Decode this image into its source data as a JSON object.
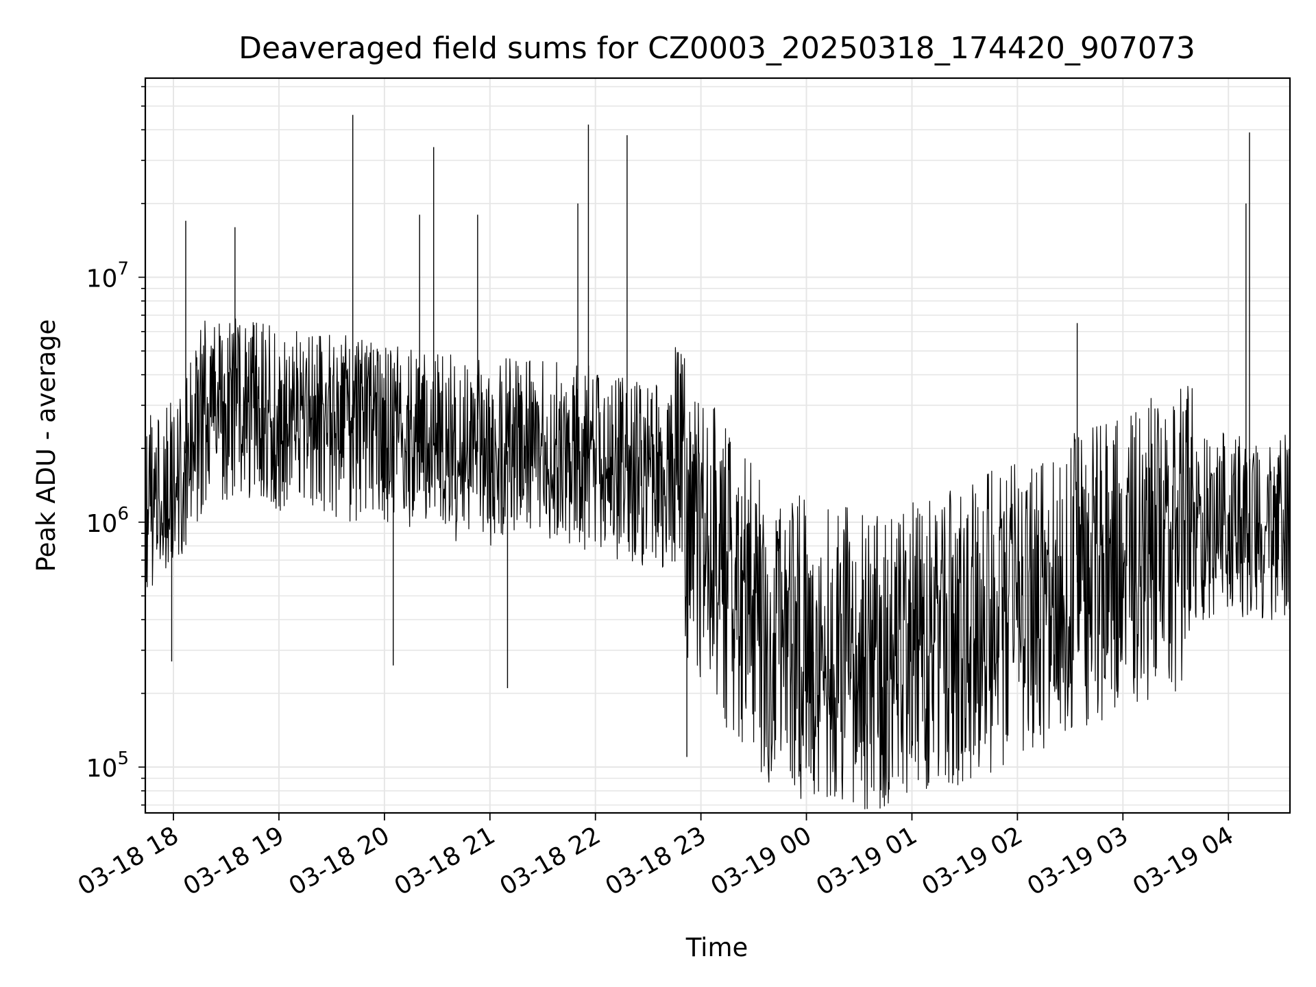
{
  "chart_data": {
    "type": "line",
    "title": "Deaveraged field sums for CZ0003_20250318_174420_907073",
    "xlabel": "Time",
    "ylabel": "Peak ADU - average",
    "yscale": "log",
    "ylim": [
      65000,
      65000000
    ],
    "xlim": [
      "2025-03-18 17:44",
      "2025-03-19 04:35"
    ],
    "grid": true,
    "x_ticks": [
      "03-18 18",
      "03-18 19",
      "03-18 20",
      "03-18 21",
      "03-18 22",
      "03-18 23",
      "03-19 00",
      "03-19 01",
      "03-19 02",
      "03-19 03",
      "03-19 04"
    ],
    "y_ticks": [
      {
        "value": 100000,
        "base": "10",
        "exp": "5"
      },
      {
        "value": 1000000,
        "base": "10",
        "exp": "6"
      },
      {
        "value": 10000000,
        "base": "10",
        "exp": "7"
      }
    ],
    "series": [
      {
        "color": "#000000",
        "x": [
          "2025-03-18 17:44",
          "2025-03-18 18:00",
          "2025-03-18 18:20",
          "2025-03-18 18:40",
          "2025-03-18 19:00",
          "2025-03-18 19:20",
          "2025-03-18 19:40",
          "2025-03-18 20:00",
          "2025-03-18 20:20",
          "2025-03-18 20:40",
          "2025-03-18 21:00",
          "2025-03-18 21:20",
          "2025-03-18 21:40",
          "2025-03-18 22:00",
          "2025-03-18 22:20",
          "2025-03-18 22:40",
          "2025-03-18 23:00",
          "2025-03-18 23:20",
          "2025-03-18 23:40",
          "2025-03-19 00:00",
          "2025-03-19 00:20",
          "2025-03-19 00:40",
          "2025-03-19 01:00",
          "2025-03-19 01:20",
          "2025-03-19 01:40",
          "2025-03-19 02:00",
          "2025-03-19 02:20",
          "2025-03-19 02:40",
          "2025-03-19 03:00",
          "2025-03-19 03:20",
          "2025-03-19 03:40",
          "2025-03-19 04:00",
          "2025-03-19 04:20",
          "2025-03-19 04:35"
        ],
        "y": [
          1200000,
          1500000,
          3000000,
          2800000,
          2600000,
          2500000,
          2400000,
          2300000,
          2100000,
          2000000,
          1900000,
          2000000,
          1900000,
          1800000,
          1600000,
          1500000,
          900000,
          500000,
          350000,
          300000,
          280000,
          270000,
          300000,
          320000,
          380000,
          420000,
          500000,
          600000,
          700000,
          800000,
          900000,
          1000000,
          900000,
          1000000
        ],
        "spikes": [
          {
            "x": "2025-03-18 18:07",
            "y": 17000000
          },
          {
            "x": "2025-03-18 18:35",
            "y": 16000000
          },
          {
            "x": "2025-03-18 19:42",
            "y": 46000000
          },
          {
            "x": "2025-03-18 20:20",
            "y": 18000000
          },
          {
            "x": "2025-03-18 20:28",
            "y": 34000000
          },
          {
            "x": "2025-03-18 20:53",
            "y": 18000000
          },
          {
            "x": "2025-03-18 21:50",
            "y": 20000000
          },
          {
            "x": "2025-03-18 21:56",
            "y": 42000000
          },
          {
            "x": "2025-03-18 22:18",
            "y": 38000000
          },
          {
            "x": "2025-03-19 02:34",
            "y": 6500000
          },
          {
            "x": "2025-03-19 04:10",
            "y": 20000000
          },
          {
            "x": "2025-03-19 04:12",
            "y": 39000000
          }
        ],
        "dips": [
          {
            "x": "2025-03-18 17:59",
            "y": 270000
          },
          {
            "x": "2025-03-18 20:05",
            "y": 260000
          },
          {
            "x": "2025-03-18 21:10",
            "y": 210000
          },
          {
            "x": "2025-03-18 22:52",
            "y": 110000
          },
          {
            "x": "2025-03-19 00:04",
            "y": 88000
          },
          {
            "x": "2025-03-18 23:52",
            "y": 90000
          }
        ]
      }
    ]
  }
}
